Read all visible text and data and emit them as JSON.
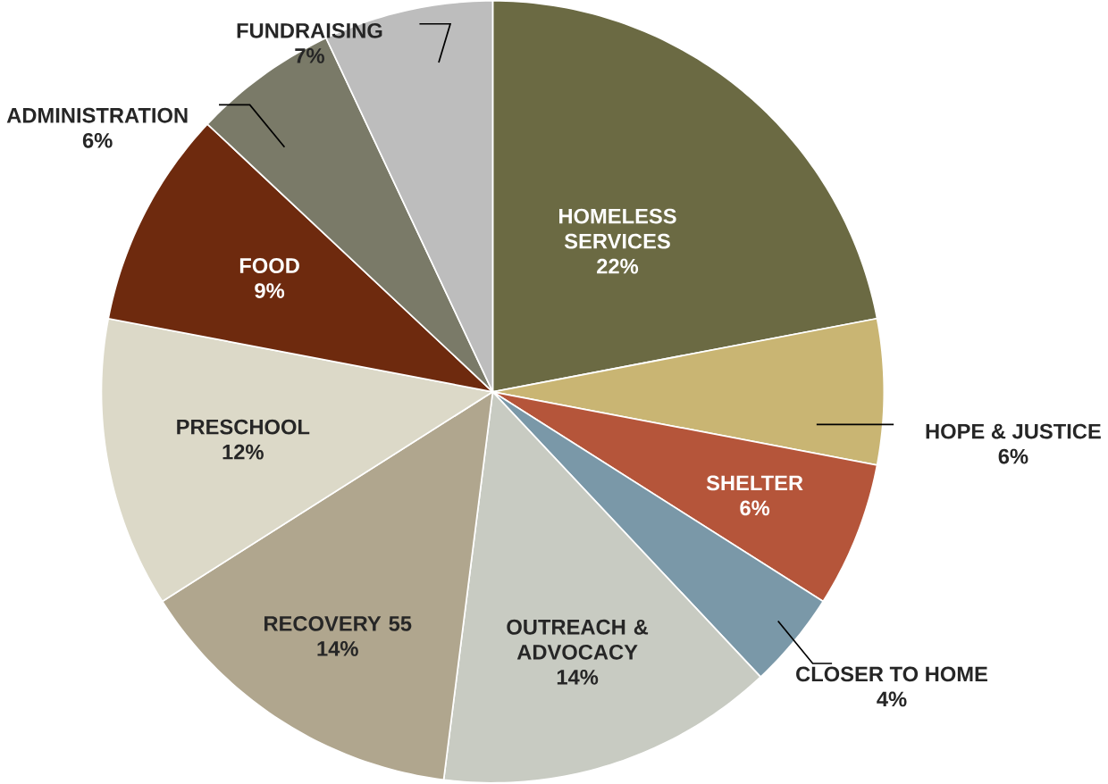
{
  "chart_data": {
    "type": "pie",
    "categories": [
      "HOMELESS SERVICES",
      "HOPE & JUSTICE",
      "SHELTER",
      "CLOSER TO HOME",
      "OUTREACH & ADVOCACY",
      "RECOVERY 55",
      "PRESCHOOL",
      "FOOD",
      "ADMINISTRATION",
      "FUNDRAISING"
    ],
    "values": [
      22,
      6,
      6,
      4,
      14,
      14,
      12,
      9,
      6,
      7
    ],
    "value_labels": [
      "22%",
      "6%",
      "6%",
      "4%",
      "14%",
      "14%",
      "12%",
      "9%",
      "6%",
      "7%"
    ],
    "colors": [
      "#6b6a43",
      "#c9b573",
      "#b5553a",
      "#7a98a8",
      "#c8cbc2",
      "#b0a68e",
      "#dcd9c8",
      "#6e2a0e",
      "#7a7a68",
      "#bdbdbd"
    ]
  }
}
